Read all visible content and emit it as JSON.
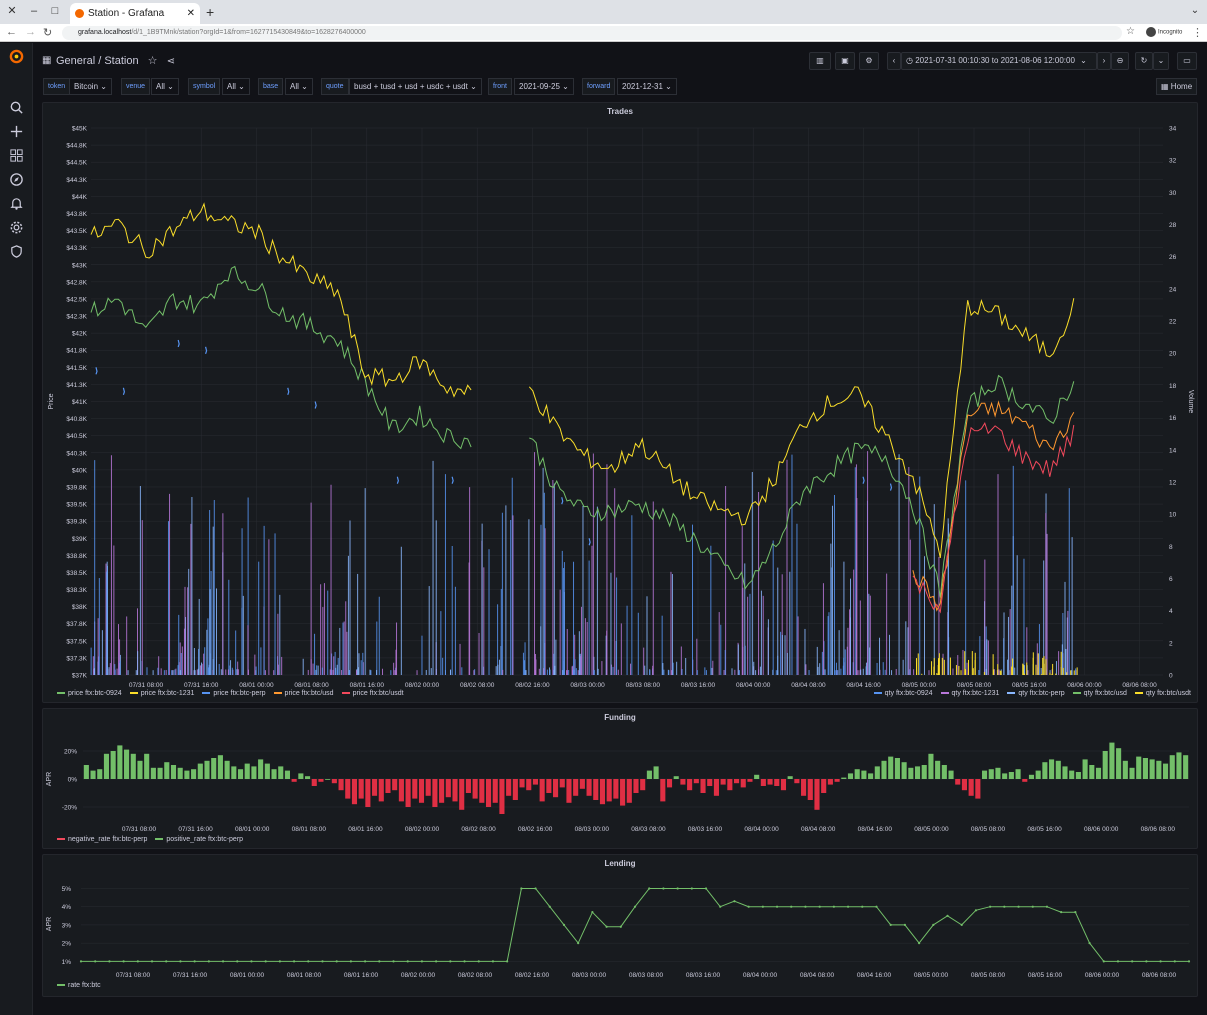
{
  "browser": {
    "tab_title": "Station - Grafana",
    "url_host": "grafana.localhost",
    "url_path": "/d/1_1B9TMnk/station?orgId=1&from=1627715430849&to=1628276400000",
    "incognito_label": "Incognito"
  },
  "header": {
    "crumb_folder": "General",
    "crumb_sep": "/",
    "crumb_title": "Station",
    "time_range": "2021-07-31 00:10:30 to 2021-08-06 12:00:00",
    "home_label": "Home"
  },
  "variables": [
    {
      "label": "token",
      "value": "Bitcoin"
    },
    {
      "label": "venue",
      "value": "All"
    },
    {
      "label": "symbol",
      "value": "All"
    },
    {
      "label": "base",
      "value": "All"
    },
    {
      "label": "quote",
      "value": "busd + tusd + usd + usdc + usdt"
    },
    {
      "label": "front",
      "value": "2021-09-25"
    },
    {
      "label": "forward",
      "value": "2021-12-31"
    }
  ],
  "colors": {
    "green": "#73bf69",
    "yellow": "#fade2a",
    "blue": "#5794f2",
    "orange": "#ff9830",
    "red": "#f2495c",
    "purple": "#b877d9",
    "grid": "#2a2d33",
    "text": "#ccccdc"
  },
  "trades": {
    "title": "Trades",
    "ylabel_left": "Price",
    "ylabel_right": "Volume",
    "y_ticks": [
      "$45K",
      "$44.8K",
      "$44.5K",
      "$44.3K",
      "$44K",
      "$43.8K",
      "$43.5K",
      "$43.3K",
      "$43K",
      "$42.8K",
      "$42.5K",
      "$42.3K",
      "$42K",
      "$41.8K",
      "$41.5K",
      "$41.3K",
      "$41K",
      "$40.8K",
      "$40.5K",
      "$40.3K",
      "$40K",
      "$39.8K",
      "$39.5K",
      "$39.3K",
      "$39K",
      "$38.8K",
      "$38.5K",
      "$38.3K",
      "$38K",
      "$37.8K",
      "$37.5K",
      "$37.3K",
      "$37K"
    ],
    "y2_ticks": [
      "34",
      "32",
      "30",
      "28",
      "26",
      "24",
      "22",
      "20",
      "18",
      "16",
      "14",
      "12",
      "10",
      "8",
      "6",
      "4",
      "2",
      "0"
    ],
    "x_ticks": [
      "07/31 08:00",
      "07/31 16:00",
      "08/01 00:00",
      "08/01 08:00",
      "08/01 16:00",
      "08/02 00:00",
      "08/02 08:00",
      "08/02 16:00",
      "08/03 00:00",
      "08/03 08:00",
      "08/03 16:00",
      "08/04 00:00",
      "08/04 08:00",
      "08/04 16:00",
      "08/05 00:00",
      "08/05 08:00",
      "08/05 16:00",
      "08/06 00:00",
      "08/06 08:00"
    ],
    "legend_left": [
      {
        "name": "price ftx:btc-0924",
        "color": "#73bf69"
      },
      {
        "name": "price ftx:btc-1231",
        "color": "#fade2a"
      },
      {
        "name": "price ftx:btc-perp",
        "color": "#5794f2"
      },
      {
        "name": "price ftx:btc/usd",
        "color": "#ff9830"
      },
      {
        "name": "price ftx:btc/usdt",
        "color": "#f2495c"
      }
    ],
    "legend_right": [
      {
        "name": "qty ftx:btc-0924",
        "color": "#5794f2"
      },
      {
        "name": "qty ftx:btc-1231",
        "color": "#b877d9"
      },
      {
        "name": "qty ftx:btc-perp",
        "color": "#8ab8ff"
      },
      {
        "name": "qty ftx:btc/usd",
        "color": "#73bf69"
      },
      {
        "name": "qty ftx:btc/usdt",
        "color": "#fade2a"
      }
    ]
  },
  "funding": {
    "title": "Funding",
    "ylabel": "APR",
    "y_ticks": [
      "20%",
      "0%",
      "-20%"
    ],
    "x_ticks": [
      "07/31 08:00",
      "07/31 16:00",
      "08/01 00:00",
      "08/01 08:00",
      "08/01 16:00",
      "08/02 00:00",
      "08/02 08:00",
      "08/02 16:00",
      "08/03 00:00",
      "08/03 08:00",
      "08/03 16:00",
      "08/04 00:00",
      "08/04 08:00",
      "08/04 16:00",
      "08/05 00:00",
      "08/05 08:00",
      "08/05 16:00",
      "08/06 00:00",
      "08/06 08:00"
    ],
    "legend": [
      {
        "name": "negative_rate ftx:btc-perp",
        "color": "#f2495c"
      },
      {
        "name": "positive_rate ftx:btc-perp",
        "color": "#73bf69"
      }
    ]
  },
  "lending": {
    "title": "Lending",
    "ylabel": "APR",
    "y_ticks": [
      "5%",
      "4%",
      "3%",
      "2%",
      "1%"
    ],
    "x_ticks": [
      "07/31 08:00",
      "07/31 16:00",
      "08/01 00:00",
      "08/01 08:00",
      "08/01 16:00",
      "08/02 00:00",
      "08/02 08:00",
      "08/02 16:00",
      "08/03 00:00",
      "08/03 08:00",
      "08/03 16:00",
      "08/04 00:00",
      "08/04 08:00",
      "08/04 16:00",
      "08/05 00:00",
      "08/05 08:00",
      "08/05 16:00",
      "08/06 00:00",
      "08/06 08:00"
    ],
    "legend": [
      {
        "name": "rate ftx:btc",
        "color": "#73bf69"
      }
    ]
  },
  "chart_data": [
    {
      "type": "line",
      "title": "Trades",
      "ylabel": "Price",
      "y2label": "Volume",
      "ylim": [
        37000,
        45000
      ],
      "y2lim": [
        0,
        34
      ],
      "x": [
        "07/31 00:00",
        "07/31 04:00",
        "07/31 08:00",
        "07/31 12:00",
        "07/31 16:00",
        "07/31 20:00",
        "08/01 00:00",
        "08/01 04:00",
        "08/01 08:00",
        "08/01 12:00",
        "08/01 16:00",
        "08/01 20:00",
        "08/02 00:00",
        "08/02 04:00",
        "08/02 08:00",
        "08/02 12:00",
        "08/02 16:00",
        "08/02 20:00",
        "08/03 00:00",
        "08/03 04:00",
        "08/03 08:00",
        "08/03 12:00",
        "08/03 16:00",
        "08/03 20:00",
        "08/04 00:00",
        "08/04 04:00",
        "08/04 08:00",
        "08/04 12:00",
        "08/04 16:00",
        "08/04 20:00",
        "08/05 00:00",
        "08/05 04:00",
        "08/05 08:00",
        "08/05 12:00",
        "08/05 16:00",
        "08/05 20:00",
        "08/06 00:00"
      ],
      "series": [
        {
          "name": "price ftx:btc-0924",
          "values": [
            42300,
            42500,
            42000,
            42500,
            42400,
            42900,
            42700,
            42300,
            42100,
            41900,
            41300,
            40600,
            40800,
            40500,
            40400,
            null,
            40500,
            39700,
            39400,
            39400,
            39500,
            39300,
            39000,
            38600,
            38300,
            38900,
            39700,
            40000,
            40300,
            40200,
            39500,
            38200,
            40900,
            41300,
            41000,
            40700,
            41400
          ]
        },
        {
          "name": "price ftx:btc-1231",
          "values": [
            43400,
            43600,
            43200,
            43500,
            43800,
            43600,
            43500,
            43100,
            42800,
            42600,
            41400,
            41300,
            41600,
            41200,
            41100,
            null,
            41200,
            40600,
            40200,
            40000,
            40400,
            40000,
            39600,
            39400,
            39300,
            39900,
            40700,
            41000,
            41100,
            40500,
            39900,
            38800,
            42400,
            42300,
            42000,
            41700,
            42500
          ]
        },
        {
          "name": "price ftx:btc-perp",
          "values": [
            41500,
            41200,
            null,
            41900,
            41800,
            null,
            null,
            41200,
            41000,
            null,
            null,
            39900,
            null,
            39900,
            null,
            null,
            null,
            39600,
            39000,
            null,
            null,
            null,
            null,
            null,
            null,
            null,
            null,
            null,
            39900,
            39800,
            null,
            null,
            null,
            null,
            null,
            null,
            null
          ]
        },
        {
          "name": "price ftx:btc/usd",
          "values": [
            null,
            null,
            null,
            null,
            null,
            null,
            null,
            null,
            null,
            null,
            null,
            null,
            null,
            null,
            null,
            null,
            null,
            null,
            null,
            null,
            null,
            null,
            null,
            null,
            null,
            null,
            null,
            null,
            null,
            null,
            38500,
            38000,
            40800,
            40900,
            40700,
            40300,
            40900
          ]
        },
        {
          "name": "price ftx:btc/usdt",
          "values": [
            null,
            null,
            null,
            null,
            null,
            null,
            null,
            null,
            null,
            null,
            null,
            null,
            null,
            null,
            null,
            null,
            null,
            null,
            null,
            null,
            null,
            null,
            null,
            null,
            null,
            null,
            null,
            null,
            null,
            null,
            38400,
            38000,
            40500,
            40600,
            40200,
            40000,
            40600
          ]
        }
      ]
    },
    {
      "type": "bar",
      "title": "Funding",
      "ylabel": "APR",
      "ylim": [
        -30,
        30
      ],
      "series": [
        {
          "name": "positive_rate ftx:btc-perp / negative_rate ftx:btc-perp",
          "values": [
            10,
            6,
            7,
            18,
            20,
            24,
            21,
            18,
            13,
            18,
            8,
            8,
            12,
            10,
            8,
            6,
            7,
            11,
            13,
            15,
            17,
            13,
            9,
            7,
            11,
            9,
            14,
            11,
            7,
            9,
            6,
            -2,
            4,
            2,
            -5,
            -2,
            0,
            -3,
            -8,
            -14,
            -18,
            -14,
            -20,
            -12,
            -16,
            -10,
            -8,
            -16,
            -20,
            -14,
            -17,
            -12,
            -20,
            -17,
            -13,
            -16,
            -22,
            -10,
            -14,
            -17,
            -20,
            -17,
            -25,
            -12,
            -15,
            -6,
            -8,
            -4,
            -16,
            -10,
            -13,
            -6,
            -17,
            -12,
            -7,
            -12,
            -15,
            -18,
            -16,
            -14,
            -19,
            -17,
            -10,
            -8,
            6,
            9,
            -16,
            -6,
            2,
            -4,
            -8,
            -3,
            -10,
            -5,
            -12,
            -4,
            -8,
            -3,
            -6,
            -2,
            3,
            -5,
            -4,
            -5,
            -8,
            2,
            -3,
            -12,
            -15,
            -22,
            -10,
            -4,
            -2,
            1,
            4,
            7,
            6,
            4,
            9,
            13,
            16,
            15,
            12,
            8,
            9,
            10,
            18,
            13,
            10,
            6,
            -4,
            -8,
            -12,
            -14,
            6,
            7,
            8,
            4,
            5,
            7,
            -2,
            3,
            6,
            12,
            14,
            13,
            9,
            6,
            5,
            14,
            10,
            8,
            20,
            26,
            22,
            13,
            8,
            16,
            15,
            14,
            13,
            11,
            17,
            19,
            17
          ]
        }
      ]
    },
    {
      "type": "line",
      "title": "Lending",
      "ylabel": "APR",
      "ylim": [
        0.8,
        5.3
      ],
      "x": [
        "07/31 00:00",
        "08/02 12:00",
        "08/02 14:00",
        "08/02 16:00",
        "08/02 18:00",
        "08/02 20:00",
        "08/02 22:00",
        "08/03 00:00",
        "08/03 02:00",
        "08/03 04:00",
        "08/03 06:00",
        "08/03 08:00",
        "08/03 10:00",
        "08/03 16:00",
        "08/03 18:00",
        "08/03 20:00",
        "08/03 22:00",
        "08/04 00:00",
        "08/04 16:00",
        "08/04 18:00",
        "08/04 20:00",
        "08/04 22:00",
        "08/05 00:00",
        "08/05 02:00",
        "08/05 04:00",
        "08/05 06:00",
        "08/05 08:00",
        "08/05 16:00",
        "08/05 18:00",
        "08/05 20:00",
        "08/05 22:00",
        "08/06 00:00",
        "08/06 12:00"
      ],
      "series": [
        {
          "name": "rate ftx:btc",
          "values": [
            1,
            1,
            5,
            5,
            4,
            3,
            2,
            3.7,
            2.9,
            2.9,
            4,
            5,
            5,
            5,
            4,
            4.3,
            4,
            4,
            4,
            3,
            3,
            2,
            3,
            3.5,
            3,
            3.8,
            4,
            4,
            3.7,
            3.7,
            2,
            1,
            1
          ]
        }
      ]
    }
  ]
}
